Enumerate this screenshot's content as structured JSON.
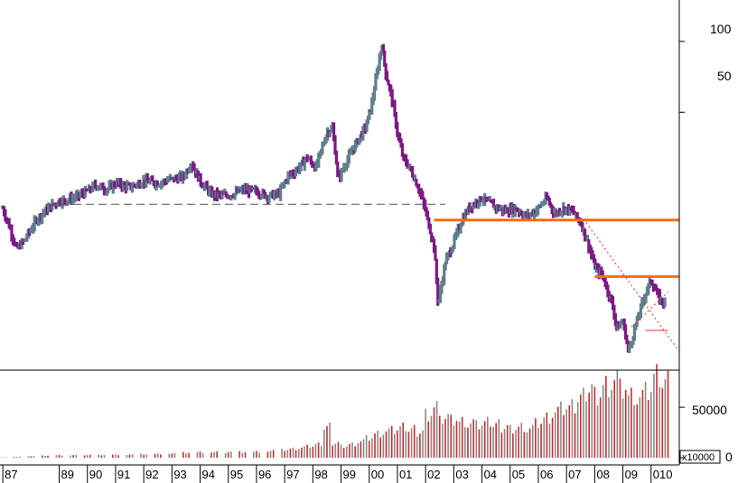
{
  "colors": {
    "up_bar": "#5f7f8c",
    "down_bar": "#7a1a82",
    "volume_up": "#cc2a2a",
    "volume_down": "#8a8a8a",
    "support_line": "#ff6a10",
    "trend_line": "#e03030",
    "dashed_line": "#555555",
    "axis": "#000000"
  },
  "chart_data": [
    {
      "type": "line",
      "subtype": "ohlc",
      "scale": "log",
      "title": "",
      "xlabel": "",
      "ylabel": "",
      "ytick_labels": [
        "100",
        "50"
      ],
      "ylim": [
        4,
        150
      ],
      "xlim": [
        1986.9,
        2011.0
      ],
      "grid": false,
      "series": [
        {
          "values": [
            [
              1987.0,
              19.5
            ],
            [
              1987.3,
              15.5
            ],
            [
              1987.5,
              13.0
            ],
            [
              1987.8,
              14.5
            ],
            [
              1988.2,
              17.5
            ],
            [
              1988.6,
              19.5
            ],
            [
              1989.0,
              21.0
            ],
            [
              1989.5,
              21.5
            ],
            [
              1990.0,
              23.0
            ],
            [
              1990.3,
              24.5
            ],
            [
              1990.7,
              23.5
            ],
            [
              1991.0,
              25.0
            ],
            [
              1991.5,
              24.0
            ],
            [
              1992.0,
              25.5
            ],
            [
              1992.5,
              25.0
            ],
            [
              1993.0,
              26.0
            ],
            [
              1993.4,
              26.5
            ],
            [
              1993.7,
              30.5
            ],
            [
              1994.0,
              25.5
            ],
            [
              1994.4,
              22.5
            ],
            [
              1994.8,
              22.0
            ],
            [
              1995.2,
              22.5
            ],
            [
              1995.6,
              23.5
            ],
            [
              1996.0,
              23.0
            ],
            [
              1996.4,
              22.0
            ],
            [
              1996.8,
              22.5
            ],
            [
              1997.1,
              26.5
            ],
            [
              1997.5,
              29.0
            ],
            [
              1997.8,
              32.0
            ],
            [
              1998.1,
              29.0
            ],
            [
              1998.5,
              41.0
            ],
            [
              1998.7,
              43.0
            ],
            [
              1998.9,
              26.0
            ],
            [
              1999.2,
              31.0
            ],
            [
              1999.6,
              38.0
            ],
            [
              1999.9,
              44.0
            ],
            [
              2000.1,
              55.0
            ],
            [
              2000.3,
              76.0
            ],
            [
              2000.45,
              98.0
            ],
            [
              2000.6,
              72.0
            ],
            [
              2000.8,
              58.0
            ],
            [
              2001.0,
              41.0
            ],
            [
              2001.2,
              32.0
            ],
            [
              2001.5,
              28.0
            ],
            [
              2001.8,
              23.0
            ],
            [
              2002.0,
              19.0
            ],
            [
              2002.3,
              13.5
            ],
            [
              2002.45,
              7.6
            ],
            [
              2002.7,
              11.5
            ],
            [
              2003.0,
              14.0
            ],
            [
              2003.3,
              17.5
            ],
            [
              2003.6,
              20.0
            ],
            [
              2004.0,
              21.5
            ],
            [
              2004.4,
              20.0
            ],
            [
              2004.8,
              19.0
            ],
            [
              2005.2,
              19.5
            ],
            [
              2005.6,
              18.0
            ],
            [
              2006.0,
              19.5
            ],
            [
              2006.3,
              21.5
            ],
            [
              2006.6,
              18.5
            ],
            [
              2006.9,
              19.5
            ],
            [
              2007.2,
              19.0
            ],
            [
              2007.5,
              17.0
            ],
            [
              2007.8,
              13.5
            ],
            [
              2008.0,
              11.0
            ],
            [
              2008.3,
              10.0
            ],
            [
              2008.6,
              7.8
            ],
            [
              2008.8,
              6.0
            ],
            [
              2009.0,
              6.5
            ],
            [
              2009.2,
              4.8
            ],
            [
              2009.5,
              6.5
            ],
            [
              2009.8,
              8.5
            ],
            [
              2010.0,
              9.7
            ],
            [
              2010.3,
              8.0
            ],
            [
              2010.5,
              7.8
            ]
          ]
        }
      ],
      "reference_lines": [
        {
          "kind": "dashed-horizontal",
          "y": 20.3,
          "x_from": 1988.6,
          "x_to": 2002.7
        },
        {
          "kind": "support",
          "y": 17.4,
          "x_from": 2002.3,
          "x_to": 2011.0
        },
        {
          "kind": "support",
          "y": 10.0,
          "x_from": 2008.0,
          "x_to": 2011.0
        },
        {
          "kind": "support-short",
          "y": 5.9,
          "x_from": 2009.8,
          "x_to": 2010.6
        },
        {
          "kind": "trend-dotted",
          "points": [
            [
              2007.6,
              17.6
            ],
            [
              2011.0,
              4.8
            ]
          ]
        },
        {
          "kind": "trend-dotted",
          "points": [
            [
              2009.3,
              6.1
            ],
            [
              2010.6,
              8.6
            ]
          ]
        }
      ]
    },
    {
      "type": "bar",
      "title": "",
      "ytick_labels": [
        "50000",
        "0"
      ],
      "ylim": [
        0,
        85000
      ],
      "unit_label": "x10000",
      "x": [
        1987.0,
        1987.5,
        1988.0,
        1988.5,
        1989.0,
        1989.5,
        1990.0,
        1990.5,
        1991.0,
        1991.5,
        1992.0,
        1992.5,
        1993.0,
        1993.5,
        1994.0,
        1994.5,
        1995.0,
        1995.5,
        1996.0,
        1996.5,
        1997.0,
        1997.3,
        1997.6,
        1997.9,
        1998.2,
        1998.5,
        1998.8,
        1999.1,
        1999.4,
        1999.7,
        2000.0,
        2000.3,
        2000.6,
        2000.9,
        2001.2,
        2001.5,
        2001.8,
        2002.1,
        2002.4,
        2002.7,
        2003.0,
        2003.3,
        2003.6,
        2003.9,
        2004.2,
        2004.5,
        2004.8,
        2005.1,
        2005.4,
        2005.7,
        2006.0,
        2006.3,
        2006.6,
        2006.9,
        2007.2,
        2007.5,
        2007.8,
        2008.1,
        2008.4,
        2008.7,
        2009.0,
        2009.3,
        2009.6,
        2009.9,
        2010.2,
        2010.5
      ],
      "values": [
        500,
        800,
        1500,
        2000,
        2500,
        2500,
        2800,
        3000,
        3200,
        3200,
        3500,
        3800,
        4200,
        4800,
        5200,
        5500,
        5800,
        6000,
        6300,
        7000,
        8000,
        9000,
        10000,
        11000,
        13000,
        30000,
        15000,
        12000,
        14000,
        17000,
        20000,
        24000,
        26000,
        27000,
        30000,
        28000,
        26000,
        45000,
        52000,
        40000,
        38000,
        36000,
        34000,
        32000,
        35000,
        33000,
        31000,
        30000,
        32000,
        30000,
        35000,
        40000,
        45000,
        48000,
        50000,
        60000,
        70000,
        65000,
        75000,
        80000,
        70000,
        62000,
        60000,
        65000,
        80000,
        75000
      ],
      "up": [
        true,
        false,
        true,
        false,
        true,
        true,
        false,
        true,
        false,
        true,
        true,
        false,
        true,
        false,
        true,
        false,
        true,
        false,
        true,
        false,
        true,
        false,
        true,
        false,
        true,
        true,
        false,
        true,
        false,
        true,
        true,
        false,
        true,
        false,
        true,
        false,
        true,
        true,
        false,
        true,
        false,
        true,
        false,
        true,
        false,
        true,
        false,
        true,
        false,
        true,
        false,
        true,
        false,
        true,
        false,
        true,
        true,
        false,
        true,
        true,
        false,
        true,
        false,
        true,
        true,
        false
      ]
    }
  ],
  "x_axis": {
    "labels": [
      "87",
      "89",
      "90",
      "91",
      "92",
      "93",
      "94",
      "95",
      "96",
      "97",
      "98",
      "99",
      "00",
      "01",
      "02",
      "03",
      "04",
      "05",
      "06",
      "07",
      "08",
      "09",
      "010"
    ],
    "years": [
      1987,
      1989,
      1990,
      1991,
      1992,
      1993,
      1994,
      1995,
      1996,
      1997,
      1998,
      1999,
      2000,
      2001,
      2002,
      2003,
      2004,
      2005,
      2006,
      2007,
      2008,
      2009,
      2010
    ]
  }
}
